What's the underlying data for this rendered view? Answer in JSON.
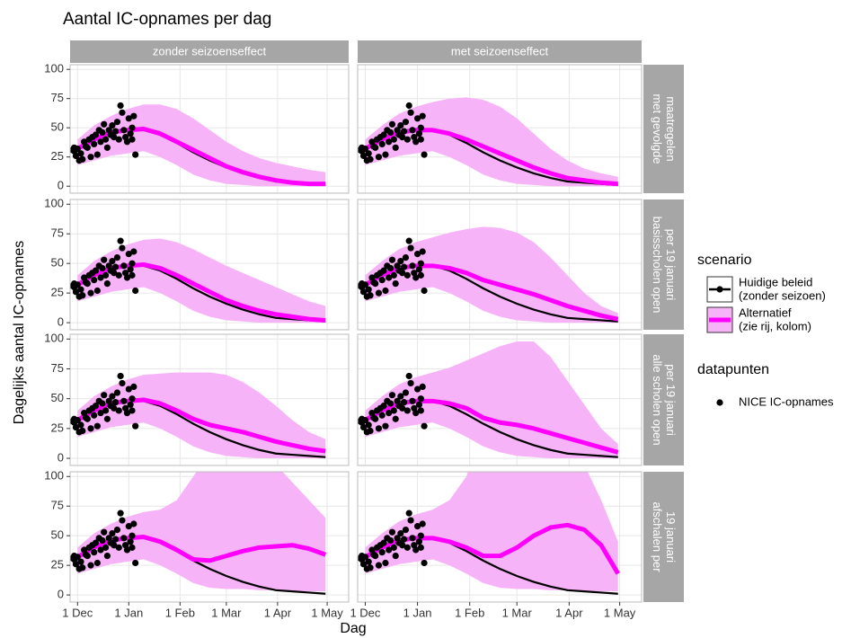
{
  "chart_data": {
    "type": "facet-ribbon-line",
    "title": "Aantal IC-opnames per dag",
    "x_label": "Dag",
    "y_label": "Dagelijks aantal IC-opnames",
    "col_labels": [
      "zonder seizoenseffect",
      "met seizoenseffect"
    ],
    "row_labels": [
      [
        "met gevolgde",
        "maatregelen"
      ],
      [
        "basisscholen open",
        "per 19 januari"
      ],
      [
        "alle scholen open",
        "per 19 januari"
      ],
      [
        "afschalen per",
        "19 januari"
      ]
    ],
    "xlim": [
      -4.5,
      164
    ],
    "xticks": [
      {
        "value": 0,
        "label": "1 Dec"
      },
      {
        "value": 31,
        "label": "1 Jan"
      },
      {
        "value": 62,
        "label": "1 Feb"
      },
      {
        "value": 90,
        "label": "1 Mar"
      },
      {
        "value": 121,
        "label": "1 Apr"
      },
      {
        "value": 151,
        "label": "1 May"
      }
    ],
    "ylim": [
      -6,
      104
    ],
    "yticks": [
      0,
      25,
      50,
      75,
      100
    ],
    "grid": true,
    "legend_title": "scenario",
    "x": [
      0,
      10,
      20,
      30,
      40,
      50,
      60,
      70,
      80,
      90,
      100,
      110,
      120,
      130,
      140,
      150
    ],
    "series": [
      {
        "name": [
          "Huidige beleid",
          "(zonder seizoen)"
        ],
        "color": "#000000",
        "values": [
          32,
          40,
          46,
          48,
          48,
          44,
          37,
          29,
          22,
          16,
          11,
          7,
          4,
          3,
          2,
          1
        ]
      },
      {
        "name": [
          "Alternatief",
          "(zie rij, kolom)"
        ],
        "color": "#ff00ff",
        "ribbon_color": "#f7b3f7"
      }
    ],
    "panels": [
      {
        "row": 0,
        "col": 0,
        "values": [
          32,
          40,
          46,
          48,
          49,
          45,
          38,
          31,
          24,
          17,
          12,
          8,
          5,
          3,
          2,
          2
        ],
        "lower": [
          18,
          22,
          26,
          28,
          30,
          25,
          18,
          10,
          5,
          2,
          1,
          0,
          0,
          0,
          0,
          0
        ],
        "upper": [
          40,
          52,
          60,
          66,
          70,
          70,
          66,
          58,
          48,
          38,
          30,
          24,
          20,
          17,
          14,
          12
        ]
      },
      {
        "row": 0,
        "col": 1,
        "values": [
          32,
          40,
          46,
          48,
          48,
          45,
          40,
          34,
          28,
          22,
          16,
          11,
          7,
          5,
          3,
          2
        ],
        "lower": [
          18,
          22,
          26,
          28,
          30,
          25,
          18,
          10,
          5,
          2,
          1,
          0,
          0,
          0,
          0,
          0
        ],
        "upper": [
          40,
          52,
          62,
          68,
          72,
          75,
          76,
          74,
          68,
          58,
          45,
          32,
          22,
          15,
          11,
          8
        ]
      },
      {
        "row": 1,
        "col": 0,
        "values": [
          32,
          40,
          46,
          48,
          49,
          46,
          40,
          33,
          26,
          19,
          14,
          10,
          7,
          5,
          3,
          2
        ],
        "lower": [
          18,
          22,
          26,
          28,
          30,
          25,
          18,
          10,
          5,
          2,
          1,
          0,
          0,
          0,
          0,
          0
        ],
        "upper": [
          40,
          52,
          60,
          66,
          70,
          71,
          68,
          62,
          55,
          48,
          42,
          36,
          30,
          24,
          18,
          14
        ]
      },
      {
        "row": 1,
        "col": 1,
        "values": [
          32,
          40,
          46,
          48,
          48,
          46,
          42,
          36,
          32,
          28,
          24,
          19,
          14,
          10,
          6,
          3
        ],
        "lower": [
          18,
          22,
          26,
          28,
          30,
          25,
          18,
          10,
          5,
          2,
          1,
          0,
          0,
          0,
          0,
          0
        ],
        "upper": [
          40,
          52,
          62,
          68,
          72,
          76,
          79,
          81,
          80,
          76,
          68,
          55,
          40,
          25,
          14,
          8
        ]
      },
      {
        "row": 2,
        "col": 0,
        "values": [
          32,
          40,
          46,
          48,
          49,
          46,
          40,
          33,
          28,
          25,
          22,
          18,
          14,
          11,
          8,
          6
        ],
        "lower": [
          18,
          22,
          26,
          28,
          30,
          25,
          18,
          10,
          5,
          2,
          1,
          0,
          0,
          0,
          0,
          0
        ],
        "upper": [
          40,
          52,
          60,
          66,
          70,
          71,
          72,
          72,
          72,
          70,
          64,
          55,
          44,
          32,
          22,
          16
        ]
      },
      {
        "row": 2,
        "col": 1,
        "values": [
          32,
          40,
          46,
          48,
          48,
          46,
          42,
          34,
          30,
          28,
          25,
          21,
          17,
          13,
          9,
          5
        ],
        "lower": [
          18,
          22,
          26,
          28,
          30,
          25,
          18,
          10,
          5,
          2,
          1,
          0,
          0,
          0,
          0,
          0
        ],
        "upper": [
          40,
          52,
          62,
          68,
          72,
          76,
          82,
          88,
          94,
          98,
          98,
          85,
          65,
          45,
          25,
          12
        ]
      },
      {
        "row": 3,
        "col": 0,
        "values": [
          32,
          40,
          46,
          48,
          49,
          45,
          38,
          30,
          29,
          33,
          37,
          40,
          41,
          42,
          39,
          34
        ],
        "lower": [
          18,
          22,
          26,
          28,
          30,
          25,
          18,
          10,
          6,
          5,
          5,
          4,
          4,
          3,
          3,
          3
        ],
        "upper": [
          40,
          52,
          60,
          66,
          70,
          72,
          80,
          100,
          120,
          130,
          130,
          125,
          110,
          95,
          80,
          65
        ]
      },
      {
        "row": 3,
        "col": 1,
        "values": [
          32,
          40,
          46,
          48,
          48,
          45,
          40,
          33,
          33,
          40,
          50,
          57,
          59,
          55,
          42,
          18
        ],
        "lower": [
          18,
          22,
          26,
          28,
          30,
          25,
          18,
          10,
          6,
          5,
          5,
          4,
          4,
          3,
          3,
          3
        ],
        "upper": [
          40,
          52,
          62,
          68,
          72,
          80,
          100,
          140,
          150,
          150,
          150,
          150,
          140,
          110,
          80,
          45
        ]
      }
    ],
    "points_title": "datapunten",
    "points": {
      "name": "NICE IC-opnames",
      "color": "#000000",
      "x": [
        -3,
        -2,
        -2,
        -1,
        0,
        1,
        2,
        3,
        4,
        5,
        6,
        7,
        8,
        9,
        10,
        11,
        12,
        13,
        14,
        15,
        16,
        17,
        18,
        19,
        20,
        21,
        22,
        23,
        24,
        25,
        26,
        27,
        28,
        29,
        30,
        31,
        32,
        33,
        33,
        34,
        35
      ],
      "y": [
        31,
        33,
        30,
        26,
        32,
        22,
        28,
        23,
        38,
        34,
        33,
        40,
        25,
        42,
        36,
        44,
        27,
        48,
        38,
        46,
        53,
        40,
        33,
        48,
        44,
        52,
        42,
        47,
        55,
        40,
        69,
        63,
        48,
        42,
        38,
        58,
        45,
        50,
        40,
        60,
        27
      ]
    }
  }
}
